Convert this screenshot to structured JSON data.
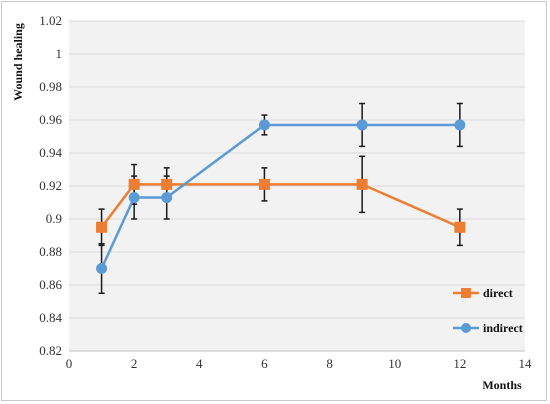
{
  "chart_data": {
    "type": "line",
    "title": "",
    "xlabel": "Months",
    "ylabel": "Wound healing",
    "xlim": [
      0,
      14
    ],
    "ylim": [
      0.82,
      1.02
    ],
    "x_ticks": [
      0,
      2,
      4,
      6,
      8,
      10,
      12,
      14
    ],
    "y_ticks": [
      0.82,
      0.84,
      0.86,
      0.88,
      0.9,
      0.92,
      0.94,
      0.96,
      0.98,
      1,
      1.02
    ],
    "grid": "horizontal",
    "legend_position": "bottom-right",
    "series": [
      {
        "name": "direct",
        "color": "#ED7D31",
        "marker": "square",
        "x": [
          1,
          2,
          3,
          6,
          9,
          12
        ],
        "y": [
          0.895,
          0.921,
          0.921,
          0.921,
          0.921,
          0.895
        ],
        "err": [
          0.011,
          0.012,
          0.01,
          0.01,
          0.017,
          0.011
        ]
      },
      {
        "name": "indirect",
        "color": "#5B9BD5",
        "marker": "circle",
        "x": [
          1,
          2,
          3,
          6,
          9,
          12
        ],
        "y": [
          0.87,
          0.913,
          0.913,
          0.957,
          0.957,
          0.957
        ],
        "err": [
          0.015,
          0.013,
          0.013,
          0.006,
          0.013,
          0.013
        ]
      }
    ]
  }
}
